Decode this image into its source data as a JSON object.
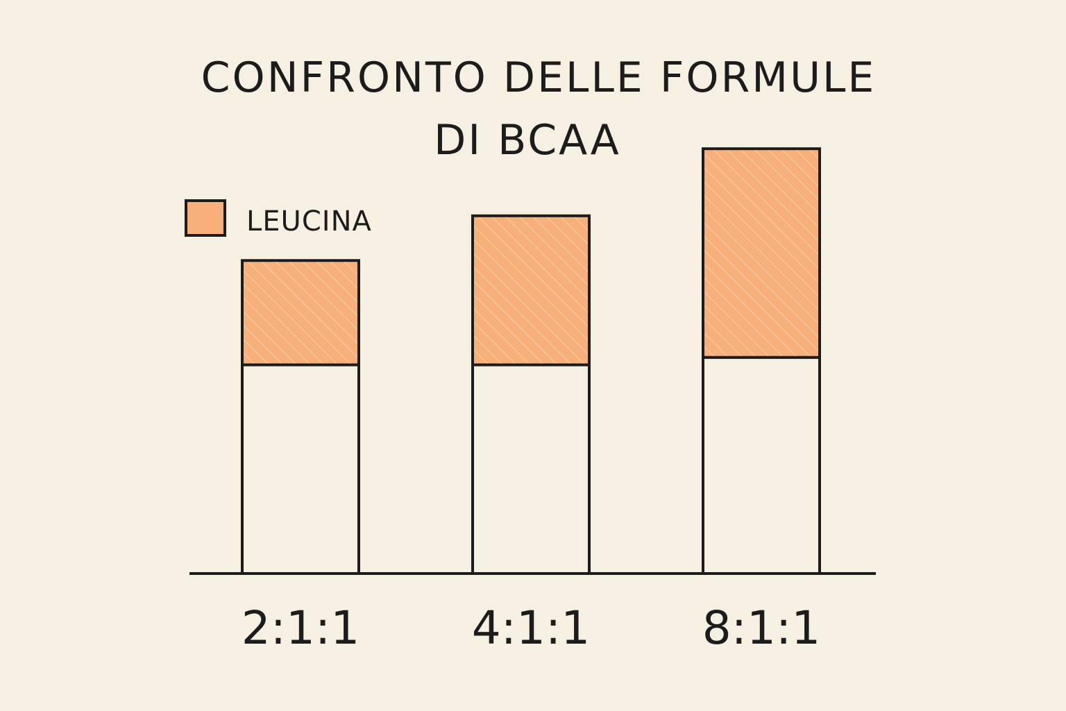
{
  "colors": {
    "background": "#f5f0e1",
    "leucine_fill": "#f7b07a",
    "leucine_hatch": "#fbe0c8",
    "ink": "#1c1c1c"
  },
  "chart_data": {
    "type": "bar",
    "title_lines": [
      "CONFRONTO DELLE FORMULE",
      "DI BCAA"
    ],
    "categories": [
      "2:1:1",
      "4:1:1",
      "8:1:1"
    ],
    "series": [
      {
        "name": "",
        "values": [
          2.8,
          2.8,
          2.9
        ]
      },
      {
        "name": "LEUCINA",
        "values": [
          1.4,
          2.0,
          2.8
        ]
      }
    ],
    "totals": [
      4.2,
      4.8,
      5.7
    ],
    "xlabel": "",
    "ylabel": "",
    "ylim": [
      0,
      6
    ],
    "y_axis_visible": false,
    "grid": false,
    "legend": "top-left",
    "stacked": true
  }
}
